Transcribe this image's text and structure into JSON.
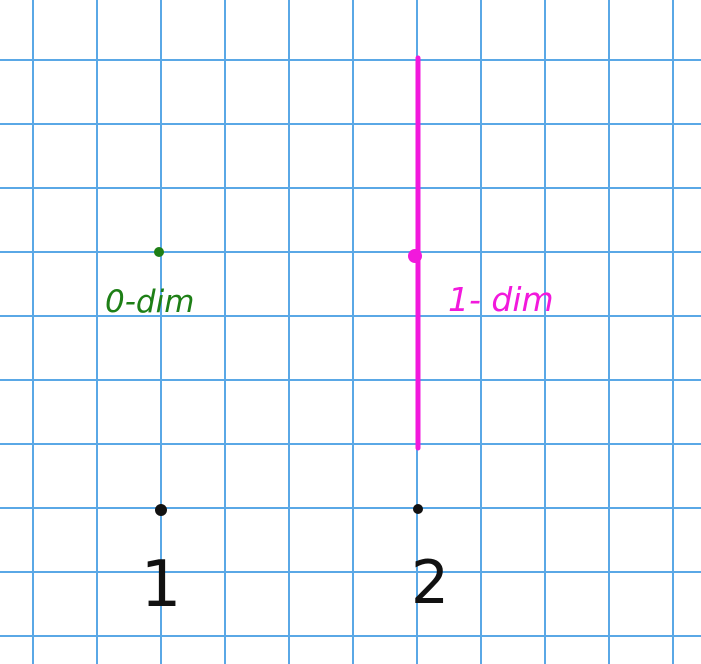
{
  "colors": {
    "grid": "#5aa8e6",
    "zero_dim": "#1e7f16",
    "one_dim": "#f219dc",
    "ink": "#111111",
    "background": "#ffffff"
  },
  "labels": {
    "zero_dim": "0-dim",
    "one_dim": "1- dim",
    "dimension_1": "1",
    "dimension_2": "2"
  }
}
